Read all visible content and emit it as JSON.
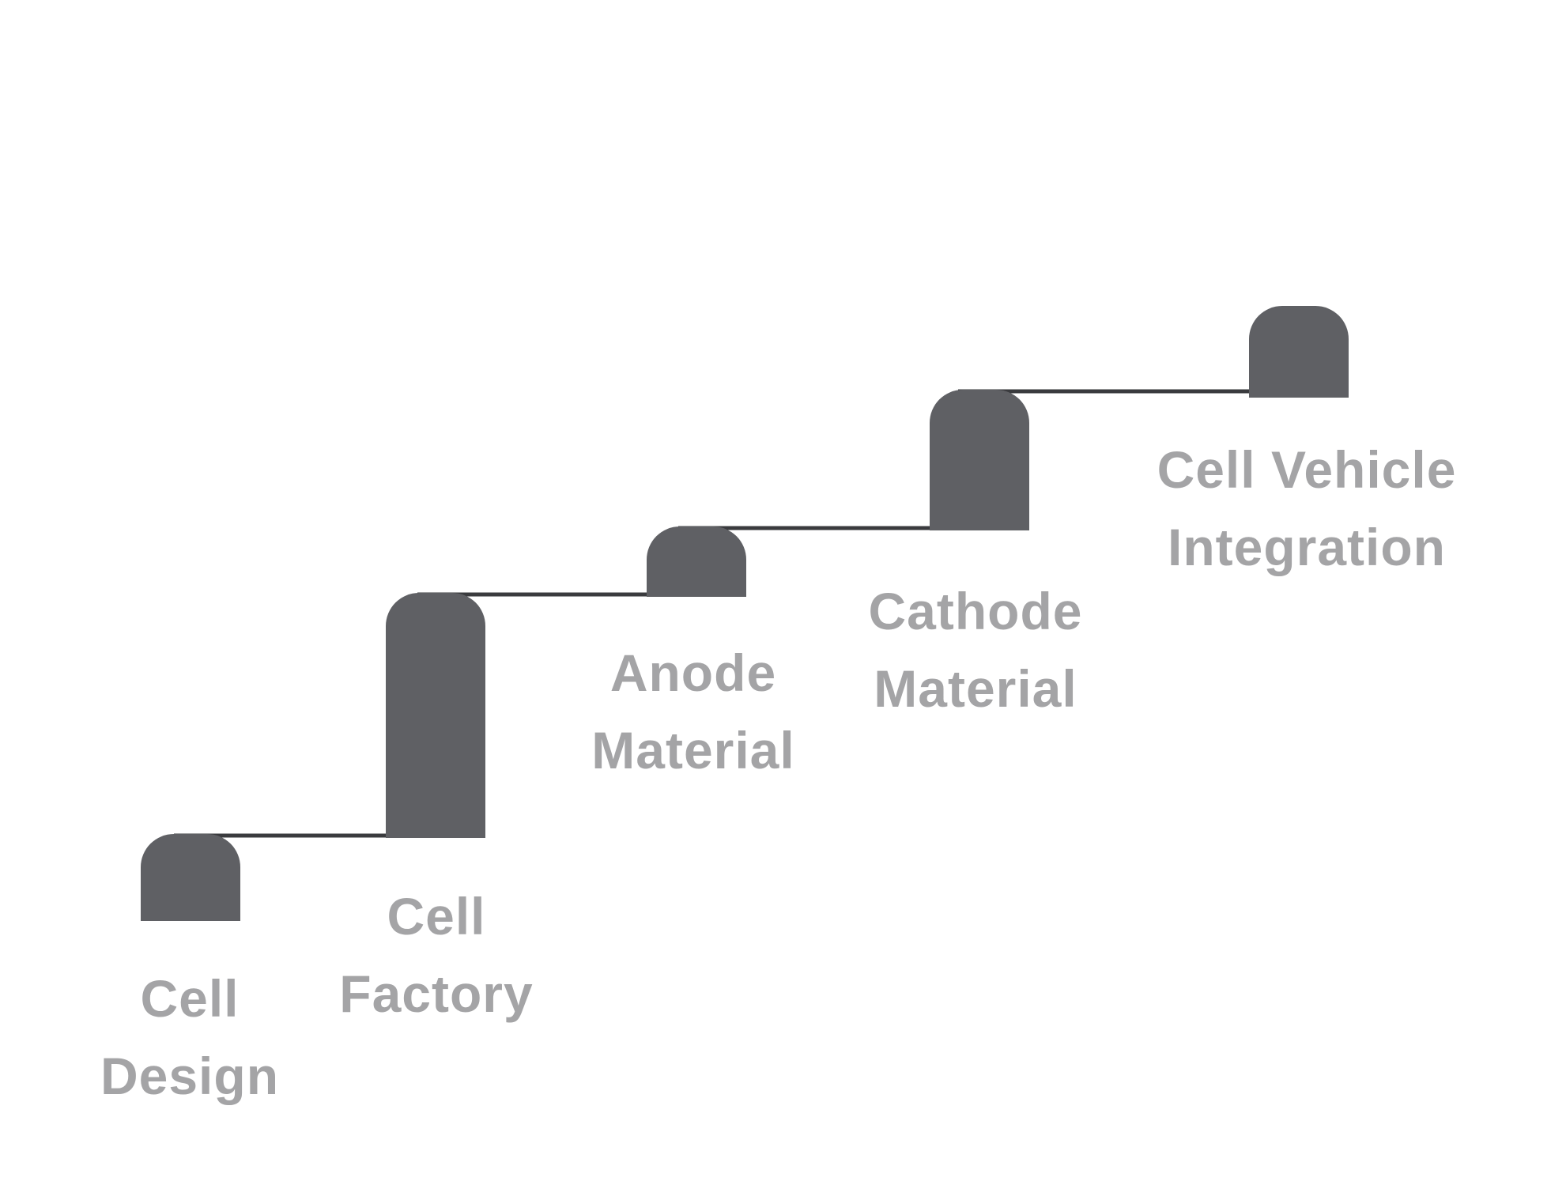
{
  "colors": {
    "block": "#5f6064",
    "connector": "#3a3b3e",
    "label": "#a4a4a6",
    "background": "#ffffff"
  },
  "steps": [
    {
      "line1": "Cell",
      "line2": "Design"
    },
    {
      "line1": "Cell",
      "line2": "Factory"
    },
    {
      "line1": "Anode",
      "line2": "Material"
    },
    {
      "line1": "Cathode",
      "line2": "Material"
    },
    {
      "line1": "Cell Vehicle",
      "line2": "Integration"
    }
  ]
}
